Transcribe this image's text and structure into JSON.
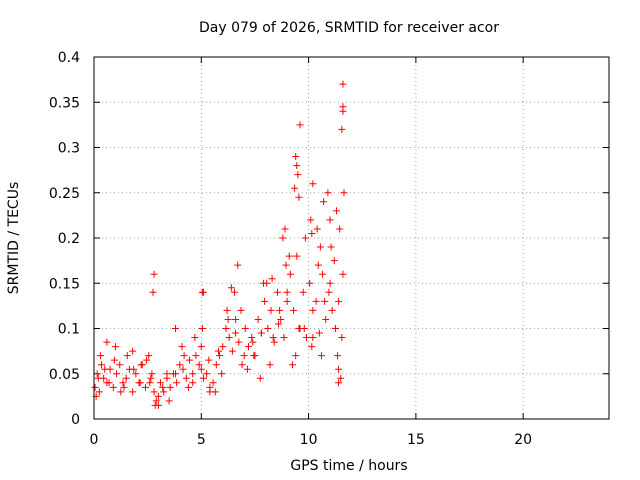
{
  "chart_data": {
    "type": "scatter",
    "title": "Day 079 of 2026, SRMTID for receiver acor",
    "xlabel": "GPS time / hours",
    "ylabel": "SRMTID / TECUs",
    "xlim": [
      0,
      24
    ],
    "ylim": [
      0,
      0.4
    ],
    "x_ticks": [
      0,
      5,
      10,
      15,
      20
    ],
    "x_tick_labels": [
      "0",
      "5",
      "10",
      "15",
      "20"
    ],
    "y_ticks": [
      0,
      0.05,
      0.1,
      0.15,
      0.2,
      0.25,
      0.3,
      0.35,
      0.4
    ],
    "y_tick_labels": [
      "0",
      "0.05",
      "0.1",
      "0.15",
      "0.2",
      "0.25",
      "0.3",
      "0.35",
      "0.4"
    ],
    "grid": true,
    "marker": "+",
    "series": [
      {
        "name": "SRMTID",
        "color": "#ff0000",
        "x": [
          0.05,
          0.15,
          0.25,
          0.35,
          0.45,
          0.6,
          0.75,
          0.9,
          1.05,
          1.2,
          1.35,
          1.5,
          1.65,
          1.8,
          1.95,
          2.1,
          2.25,
          2.4,
          2.55,
          2.7,
          2.8,
          2.9,
          3.0,
          3.1,
          3.25,
          3.4,
          3.55,
          3.7,
          3.85,
          4.0,
          4.15,
          4.3,
          4.45,
          4.6,
          4.75,
          4.9,
          5.0,
          5.1,
          5.25,
          5.4,
          5.55,
          5.7,
          5.85,
          6.0,
          6.15,
          6.3,
          6.45,
          6.6,
          6.75,
          6.9,
          7.05,
          7.2,
          7.35,
          7.5,
          7.65,
          7.8,
          7.95,
          8.1,
          8.25,
          8.4,
          8.55,
          8.7,
          8.85,
          9.0,
          9.15,
          9.3,
          9.45,
          9.6,
          9.75,
          9.9,
          10.05,
          10.2,
          10.35,
          10.5,
          10.65,
          10.8,
          10.95,
          11.1,
          11.25,
          11.4,
          11.55,
          0.1,
          0.3,
          0.5,
          0.7,
          0.95,
          1.25,
          1.55,
          1.85,
          2.15,
          2.45,
          2.65,
          2.85,
          3.2,
          3.5,
          3.8,
          4.1,
          4.4,
          4.7,
          5.05,
          5.35,
          5.65,
          5.95,
          6.25,
          6.55,
          6.85,
          7.15,
          7.45,
          7.75,
          8.05,
          8.35,
          8.65,
          8.95,
          9.25,
          9.55,
          9.85,
          10.15,
          10.45,
          10.75,
          11.05,
          11.35,
          11.6,
          0.2,
          0.6,
          1.0,
          1.4,
          1.8,
          2.2,
          2.6,
          3.0,
          3.4,
          3.8,
          4.2,
          4.6,
          5.0,
          5.4,
          5.8,
          6.2,
          6.6,
          7.0,
          7.4,
          7.8,
          8.2,
          8.6,
          9.0,
          9.4,
          9.8,
          10.2,
          10.6,
          11.0,
          11.4,
          2.75,
          2.8,
          5.05,
          5.1,
          6.4,
          6.7,
          7.9,
          8.3,
          8.8,
          8.9,
          9.1,
          9.35,
          9.4,
          9.45,
          9.5,
          9.55,
          9.6,
          10.1,
          10.15,
          10.2,
          10.4,
          10.55,
          10.7,
          10.9,
          11.0,
          11.2,
          11.3,
          11.45,
          11.55,
          11.6,
          11.6,
          11.6,
          11.65,
          11.4,
          11.5
        ],
        "y": [
          0.035,
          0.05,
          0.03,
          0.06,
          0.045,
          0.04,
          0.055,
          0.035,
          0.05,
          0.06,
          0.04,
          0.045,
          0.055,
          0.03,
          0.05,
          0.04,
          0.06,
          0.035,
          0.07,
          0.05,
          0.03,
          0.02,
          0.025,
          0.04,
          0.03,
          0.045,
          0.035,
          0.05,
          0.04,
          0.06,
          0.055,
          0.045,
          0.065,
          0.05,
          0.07,
          0.06,
          0.055,
          0.045,
          0.05,
          0.035,
          0.04,
          0.06,
          0.07,
          0.08,
          0.1,
          0.09,
          0.075,
          0.11,
          0.085,
          0.06,
          0.1,
          0.08,
          0.09,
          0.07,
          0.11,
          0.095,
          0.13,
          0.1,
          0.12,
          0.085,
          0.14,
          0.11,
          0.09,
          0.13,
          0.16,
          0.12,
          0.18,
          0.1,
          0.14,
          0.09,
          0.15,
          0.12,
          0.13,
          0.095,
          0.16,
          0.11,
          0.14,
          0.12,
          0.1,
          0.13,
          0.09,
          0.025,
          0.07,
          0.055,
          0.04,
          0.065,
          0.03,
          0.07,
          0.055,
          0.04,
          0.065,
          0.045,
          0.015,
          0.035,
          0.02,
          0.05,
          0.08,
          0.035,
          0.09,
          0.1,
          0.065,
          0.03,
          0.05,
          0.11,
          0.14,
          0.12,
          0.055,
          0.07,
          0.045,
          0.15,
          0.09,
          0.12,
          0.17,
          0.06,
          0.1,
          0.2,
          0.08,
          0.17,
          0.13,
          0.19,
          0.07,
          0.16,
          0.045,
          0.085,
          0.08,
          0.035,
          0.075,
          0.06,
          0.04,
          0.015,
          0.05,
          0.1,
          0.07,
          0.04,
          0.08,
          0.03,
          0.075,
          0.12,
          0.095,
          0.07,
          0.085,
          0.095,
          0.06,
          0.105,
          0.14,
          0.07,
          0.1,
          0.09,
          0.07,
          0.15,
          0.055,
          0.14,
          0.16,
          0.14,
          0.14,
          0.145,
          0.17,
          0.15,
          0.155,
          0.2,
          0.21,
          0.18,
          0.255,
          0.29,
          0.28,
          0.27,
          0.245,
          0.325,
          0.22,
          0.205,
          0.26,
          0.21,
          0.19,
          0.24,
          0.25,
          0.22,
          0.175,
          0.23,
          0.21,
          0.32,
          0.34,
          0.345,
          0.37,
          0.25,
          0.04,
          0.045
        ]
      }
    ]
  }
}
